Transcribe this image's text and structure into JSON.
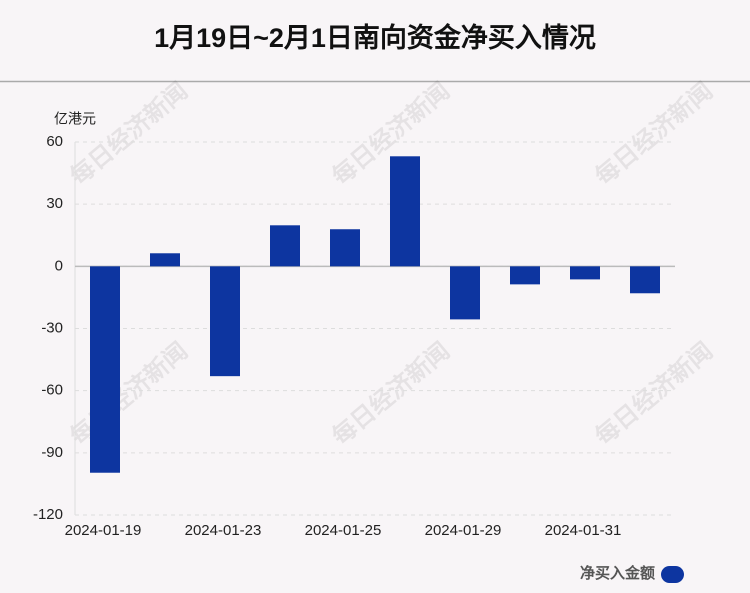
{
  "chart_data": {
    "type": "bar",
    "title": "1月19日~2月1日南向资金净买入情况",
    "y_unit": "亿港元",
    "categories": [
      "2024-01-19",
      null,
      "2024-01-23",
      null,
      "2024-01-25",
      null,
      "2024-01-29",
      null,
      "2024-01-31",
      null
    ],
    "series": [
      {
        "name": "净买入金额",
        "color": "#0d35a0",
        "values": [
          -99.6,
          6.3,
          -53.0,
          19.8,
          17.9,
          53.1,
          -25.6,
          -8.7,
          -6.3,
          -13.0
        ]
      }
    ],
    "ylim": [
      -120,
      60
    ],
    "yticks": [
      -120,
      -90,
      -60,
      -30,
      0,
      30,
      60
    ],
    "grid": true,
    "watermark": "每日经济新闻"
  }
}
